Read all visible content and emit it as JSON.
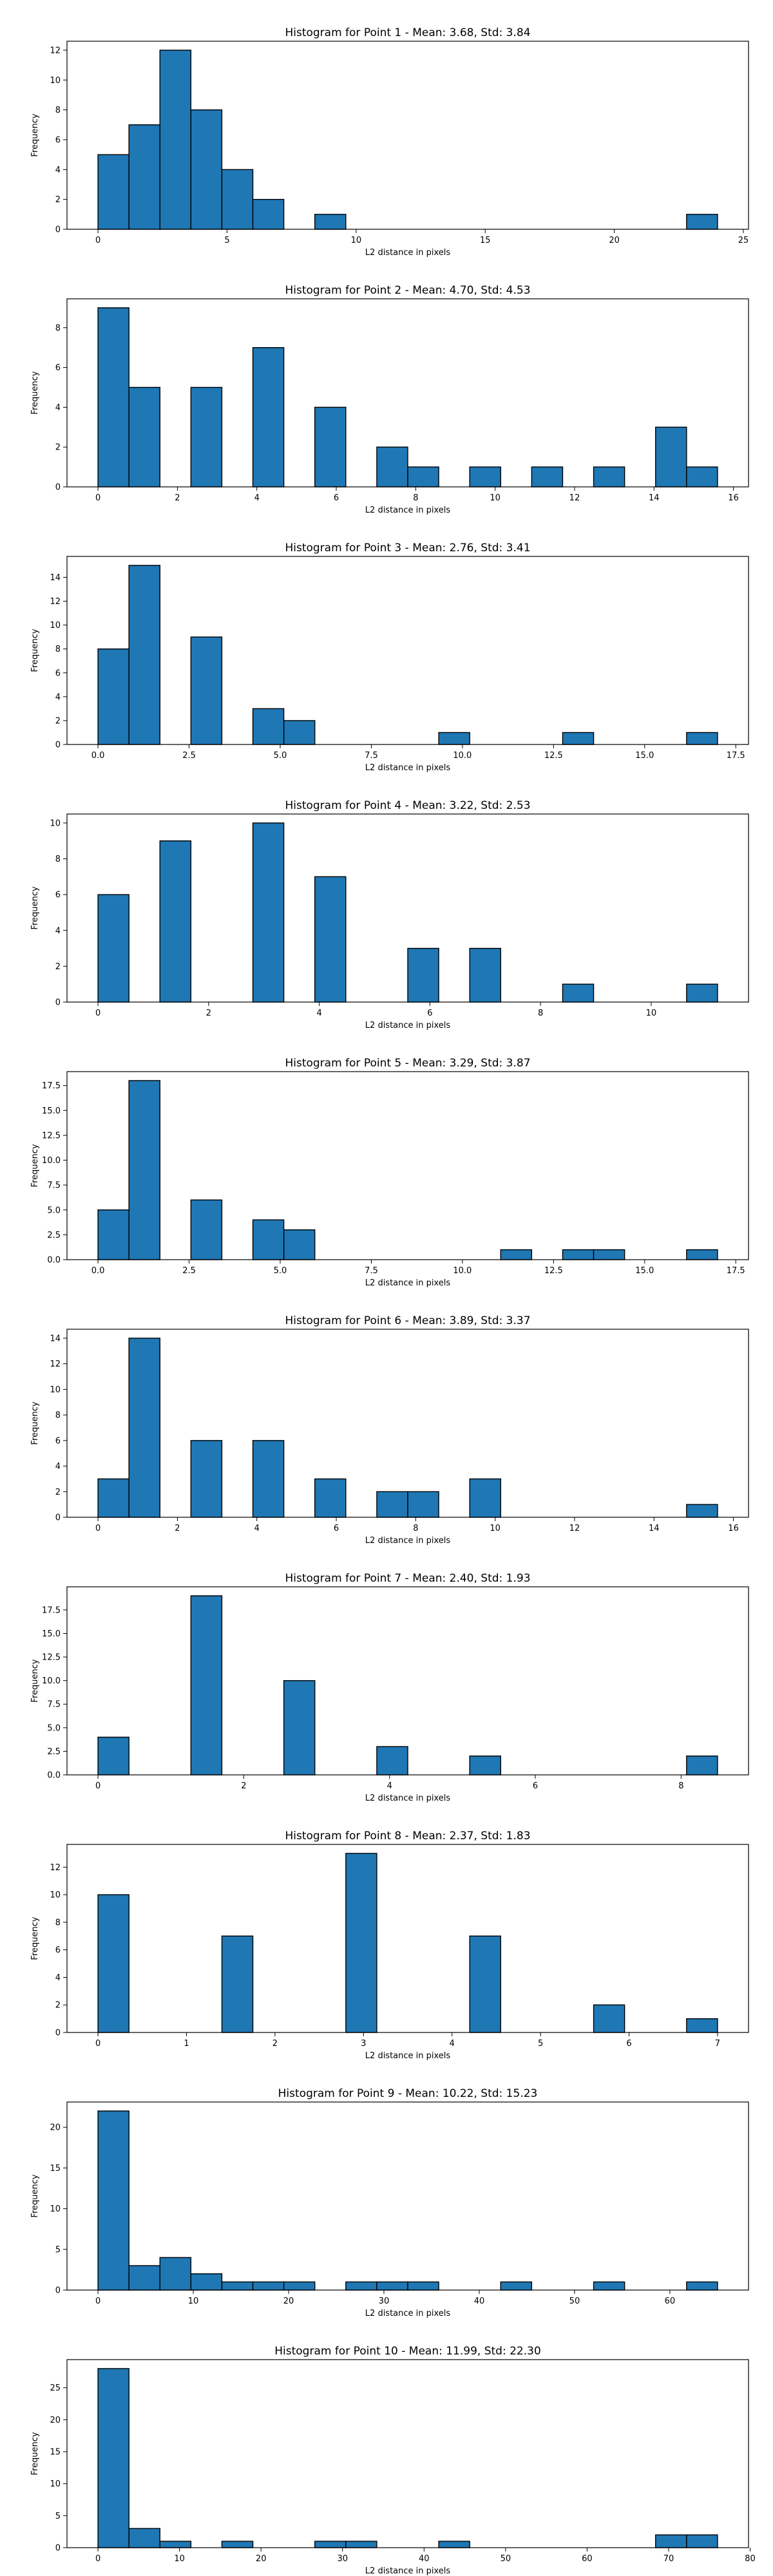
{
  "chart_data": [
    {
      "type": "bar",
      "title": "Histogram for Point 1 - Mean: 3.68, Std: 3.84",
      "xlabel": "L2 distance in pixels",
      "ylabel": "Frequency",
      "xlim": [
        -1.2,
        25.2
      ],
      "ylim": [
        0,
        12.6
      ],
      "xticks": [
        0,
        5,
        10,
        15,
        20,
        25
      ],
      "xtick_labels": [
        "0",
        "5",
        "10",
        "15",
        "20",
        "25"
      ],
      "yticks": [
        0,
        2,
        4,
        6,
        8,
        10,
        12
      ],
      "ytick_labels": [
        "0",
        "2",
        "4",
        "6",
        "8",
        "10",
        "12"
      ],
      "bins": [
        {
          "x0": 0.0,
          "x1": 1.2,
          "count": 5
        },
        {
          "x0": 1.2,
          "x1": 2.4,
          "count": 7
        },
        {
          "x0": 2.4,
          "x1": 3.6,
          "count": 12
        },
        {
          "x0": 3.6,
          "x1": 4.8,
          "count": 8
        },
        {
          "x0": 4.8,
          "x1": 6.0,
          "count": 4
        },
        {
          "x0": 6.0,
          "x1": 7.2,
          "count": 2
        },
        {
          "x0": 8.4,
          "x1": 9.6,
          "count": 1
        },
        {
          "x0": 22.8,
          "x1": 24.0,
          "count": 1
        }
      ]
    },
    {
      "type": "bar",
      "title": "Histogram for Point 2 - Mean: 4.70, Std: 4.53",
      "xlabel": "L2 distance in pixels",
      "ylabel": "Frequency",
      "xlim": [
        -0.78,
        16.38
      ],
      "ylim": [
        0,
        9.45
      ],
      "xticks": [
        0,
        2,
        4,
        6,
        8,
        10,
        12,
        14,
        16
      ],
      "xtick_labels": [
        "0",
        "2",
        "4",
        "6",
        "8",
        "10",
        "12",
        "14",
        "16"
      ],
      "yticks": [
        0,
        2,
        4,
        6,
        8
      ],
      "ytick_labels": [
        "0",
        "2",
        "4",
        "6",
        "8"
      ],
      "bins": [
        {
          "x0": 0.0,
          "x1": 0.78,
          "count": 9
        },
        {
          "x0": 0.78,
          "x1": 1.56,
          "count": 5
        },
        {
          "x0": 2.34,
          "x1": 3.12,
          "count": 5
        },
        {
          "x0": 3.9,
          "x1": 4.68,
          "count": 7
        },
        {
          "x0": 5.46,
          "x1": 6.24,
          "count": 4
        },
        {
          "x0": 7.02,
          "x1": 7.8,
          "count": 2
        },
        {
          "x0": 7.8,
          "x1": 8.58,
          "count": 1
        },
        {
          "x0": 9.36,
          "x1": 10.14,
          "count": 1
        },
        {
          "x0": 10.92,
          "x1": 11.7,
          "count": 1
        },
        {
          "x0": 12.48,
          "x1": 13.26,
          "count": 1
        },
        {
          "x0": 14.04,
          "x1": 14.82,
          "count": 3
        },
        {
          "x0": 14.82,
          "x1": 15.6,
          "count": 1
        }
      ]
    },
    {
      "type": "bar",
      "title": "Histogram for Point 3 - Mean: 2.76, Std: 3.41",
      "xlabel": "L2 distance in pixels",
      "ylabel": "Frequency",
      "xlim": [
        -0.85,
        17.85
      ],
      "ylim": [
        0,
        15.75
      ],
      "xticks": [
        0,
        2.5,
        5,
        7.5,
        10,
        12.5,
        15,
        17.5
      ],
      "xtick_labels": [
        "0.0",
        "2.5",
        "5.0",
        "7.5",
        "10.0",
        "12.5",
        "15.0",
        "17.5"
      ],
      "yticks": [
        0,
        2,
        4,
        6,
        8,
        10,
        12,
        14
      ],
      "ytick_labels": [
        "0",
        "2",
        "4",
        "6",
        "8",
        "10",
        "12",
        "14"
      ],
      "bins": [
        {
          "x0": 0.0,
          "x1": 0.85,
          "count": 8
        },
        {
          "x0": 0.85,
          "x1": 1.7,
          "count": 15
        },
        {
          "x0": 2.55,
          "x1": 3.4,
          "count": 9
        },
        {
          "x0": 4.25,
          "x1": 5.1,
          "count": 3
        },
        {
          "x0": 5.1,
          "x1": 5.95,
          "count": 2
        },
        {
          "x0": 9.35,
          "x1": 10.2,
          "count": 1
        },
        {
          "x0": 12.75,
          "x1": 13.6,
          "count": 1
        },
        {
          "x0": 16.15,
          "x1": 17.0,
          "count": 1
        }
      ]
    },
    {
      "type": "bar",
      "title": "Histogram for Point 4 - Mean: 3.22, Std: 2.53",
      "xlabel": "L2 distance in pixels",
      "ylabel": "Frequency",
      "xlim": [
        -0.56,
        11.76
      ],
      "ylim": [
        0,
        10.5
      ],
      "xticks": [
        0,
        2,
        4,
        6,
        8,
        10
      ],
      "xtick_labels": [
        "0",
        "2",
        "4",
        "6",
        "8",
        "10"
      ],
      "yticks": [
        0,
        2,
        4,
        6,
        8,
        10
      ],
      "ytick_labels": [
        "0",
        "2",
        "4",
        "6",
        "8",
        "10"
      ],
      "bins": [
        {
          "x0": 0.0,
          "x1": 0.56,
          "count": 6
        },
        {
          "x0": 1.12,
          "x1": 1.68,
          "count": 9
        },
        {
          "x0": 2.8,
          "x1": 3.36,
          "count": 10
        },
        {
          "x0": 3.92,
          "x1": 4.48,
          "count": 7
        },
        {
          "x0": 5.6,
          "x1": 6.16,
          "count": 3
        },
        {
          "x0": 6.72,
          "x1": 7.28,
          "count": 3
        },
        {
          "x0": 8.4,
          "x1": 8.96,
          "count": 1
        },
        {
          "x0": 10.64,
          "x1": 11.2,
          "count": 1
        }
      ]
    },
    {
      "type": "bar",
      "title": "Histogram for Point 5 - Mean: 3.29, Std: 3.87",
      "xlabel": "L2 distance in pixels",
      "ylabel": "Frequency",
      "xlim": [
        -0.85,
        17.85
      ],
      "ylim": [
        0,
        18.9
      ],
      "xticks": [
        0,
        2.5,
        5,
        7.5,
        10,
        12.5,
        15,
        17.5
      ],
      "xtick_labels": [
        "0.0",
        "2.5",
        "5.0",
        "7.5",
        "10.0",
        "12.5",
        "15.0",
        "17.5"
      ],
      "yticks": [
        0,
        2.5,
        5,
        7.5,
        10,
        12.5,
        15,
        17.5
      ],
      "ytick_labels": [
        "0.0",
        "2.5",
        "5.0",
        "7.5",
        "10.0",
        "12.5",
        "15.0",
        "17.5"
      ],
      "bins": [
        {
          "x0": 0.0,
          "x1": 0.85,
          "count": 5
        },
        {
          "x0": 0.85,
          "x1": 1.7,
          "count": 18
        },
        {
          "x0": 2.55,
          "x1": 3.4,
          "count": 6
        },
        {
          "x0": 4.25,
          "x1": 5.1,
          "count": 4
        },
        {
          "x0": 5.1,
          "x1": 5.95,
          "count": 3
        },
        {
          "x0": 11.05,
          "x1": 11.9,
          "count": 1
        },
        {
          "x0": 12.75,
          "x1": 13.6,
          "count": 1
        },
        {
          "x0": 13.6,
          "x1": 14.45,
          "count": 1
        },
        {
          "x0": 16.15,
          "x1": 17.0,
          "count": 1
        }
      ]
    },
    {
      "type": "bar",
      "title": "Histogram for Point 6 - Mean: 3.89, Std: 3.37",
      "xlabel": "L2 distance in pixels",
      "ylabel": "Frequency",
      "xlim": [
        -0.78,
        16.38
      ],
      "ylim": [
        0,
        14.7
      ],
      "xticks": [
        0,
        2,
        4,
        6,
        8,
        10,
        12,
        14,
        16
      ],
      "xtick_labels": [
        "0",
        "2",
        "4",
        "6",
        "8",
        "10",
        "12",
        "14",
        "16"
      ],
      "yticks": [
        0,
        2,
        4,
        6,
        8,
        10,
        12,
        14
      ],
      "ytick_labels": [
        "0",
        "2",
        "4",
        "6",
        "8",
        "10",
        "12",
        "14"
      ],
      "bins": [
        {
          "x0": 0.0,
          "x1": 0.78,
          "count": 3
        },
        {
          "x0": 0.78,
          "x1": 1.56,
          "count": 14
        },
        {
          "x0": 2.34,
          "x1": 3.12,
          "count": 6
        },
        {
          "x0": 3.9,
          "x1": 4.68,
          "count": 6
        },
        {
          "x0": 5.46,
          "x1": 6.24,
          "count": 3
        },
        {
          "x0": 7.02,
          "x1": 7.8,
          "count": 2
        },
        {
          "x0": 7.8,
          "x1": 8.58,
          "count": 2
        },
        {
          "x0": 9.36,
          "x1": 10.14,
          "count": 3
        },
        {
          "x0": 14.82,
          "x1": 15.6,
          "count": 1
        }
      ]
    },
    {
      "type": "bar",
      "title": "Histogram for Point 7 - Mean: 2.40, Std: 1.93",
      "xlabel": "L2 distance in pixels",
      "ylabel": "Frequency",
      "xlim": [
        -0.425,
        8.925
      ],
      "ylim": [
        0,
        19.95
      ],
      "xticks": [
        0,
        2,
        4,
        6,
        8
      ],
      "xtick_labels": [
        "0",
        "2",
        "4",
        "6",
        "8"
      ],
      "yticks": [
        0,
        2.5,
        5,
        7.5,
        10,
        12.5,
        15,
        17.5
      ],
      "ytick_labels": [
        "0.0",
        "2.5",
        "5.0",
        "7.5",
        "10.0",
        "12.5",
        "15.0",
        "17.5"
      ],
      "bins": [
        {
          "x0": 0.0,
          "x1": 0.425,
          "count": 4
        },
        {
          "x0": 1.275,
          "x1": 1.7,
          "count": 19
        },
        {
          "x0": 2.55,
          "x1": 2.975,
          "count": 10
        },
        {
          "x0": 3.825,
          "x1": 4.25,
          "count": 3
        },
        {
          "x0": 5.1,
          "x1": 5.525,
          "count": 2
        },
        {
          "x0": 8.075,
          "x1": 8.5,
          "count": 2
        }
      ]
    },
    {
      "type": "bar",
      "title": "Histogram for Point 8 - Mean: 2.37, Std: 1.83",
      "xlabel": "L2 distance in pixels",
      "ylabel": "Frequency",
      "xlim": [
        -0.35,
        7.35
      ],
      "ylim": [
        0,
        13.65
      ],
      "xticks": [
        0,
        1,
        2,
        3,
        4,
        5,
        6,
        7
      ],
      "xtick_labels": [
        "0",
        "1",
        "2",
        "3",
        "4",
        "5",
        "6",
        "7"
      ],
      "yticks": [
        0,
        2,
        4,
        6,
        8,
        10,
        12
      ],
      "ytick_labels": [
        "0",
        "2",
        "4",
        "6",
        "8",
        "10",
        "12"
      ],
      "bins": [
        {
          "x0": 0.0,
          "x1": 0.35,
          "count": 10
        },
        {
          "x0": 1.4,
          "x1": 1.75,
          "count": 7
        },
        {
          "x0": 2.8,
          "x1": 3.15,
          "count": 13
        },
        {
          "x0": 4.2,
          "x1": 4.55,
          "count": 7
        },
        {
          "x0": 5.6,
          "x1": 5.95,
          "count": 2
        },
        {
          "x0": 6.65,
          "x1": 7.0,
          "count": 1
        }
      ]
    },
    {
      "type": "bar",
      "title": "Histogram for Point 9 - Mean: 10.22, Std: 15.23",
      "xlabel": "L2 distance in pixels",
      "ylabel": "Frequency",
      "xlim": [
        -3.25,
        68.25
      ],
      "ylim": [
        0,
        23.1
      ],
      "xticks": [
        0,
        10,
        20,
        30,
        40,
        50,
        60
      ],
      "xtick_labels": [
        "0",
        "10",
        "20",
        "30",
        "40",
        "50",
        "60"
      ],
      "yticks": [
        0,
        5,
        10,
        15,
        20
      ],
      "ytick_labels": [
        "0",
        "5",
        "10",
        "15",
        "20"
      ],
      "bins": [
        {
          "x0": 0.0,
          "x1": 3.25,
          "count": 22
        },
        {
          "x0": 3.25,
          "x1": 6.5,
          "count": 3
        },
        {
          "x0": 6.5,
          "x1": 9.75,
          "count": 4
        },
        {
          "x0": 9.75,
          "x1": 13.0,
          "count": 2
        },
        {
          "x0": 13.0,
          "x1": 16.25,
          "count": 1
        },
        {
          "x0": 16.25,
          "x1": 19.5,
          "count": 1
        },
        {
          "x0": 19.5,
          "x1": 22.75,
          "count": 1
        },
        {
          "x0": 26.0,
          "x1": 29.25,
          "count": 1
        },
        {
          "x0": 29.25,
          "x1": 32.5,
          "count": 1
        },
        {
          "x0": 32.5,
          "x1": 35.75,
          "count": 1
        },
        {
          "x0": 42.25,
          "x1": 45.5,
          "count": 1
        },
        {
          "x0": 52.0,
          "x1": 55.25,
          "count": 1
        },
        {
          "x0": 61.75,
          "x1": 65.0,
          "count": 1
        }
      ]
    },
    {
      "type": "bar",
      "title": "Histogram for Point 10 - Mean: 11.99, Std: 22.30",
      "xlabel": "L2 distance in pixels",
      "ylabel": "Frequency",
      "xlim": [
        -3.8,
        79.8
      ],
      "ylim": [
        0,
        29.4
      ],
      "xticks": [
        0,
        10,
        20,
        30,
        40,
        50,
        60,
        70,
        80
      ],
      "xtick_labels": [
        "0",
        "10",
        "20",
        "30",
        "40",
        "50",
        "60",
        "70",
        "80"
      ],
      "yticks": [
        0,
        5,
        10,
        15,
        20,
        25
      ],
      "ytick_labels": [
        "0",
        "5",
        "10",
        "15",
        "20",
        "25"
      ],
      "bins": [
        {
          "x0": 0.0,
          "x1": 3.8,
          "count": 28
        },
        {
          "x0": 3.8,
          "x1": 7.6,
          "count": 3
        },
        {
          "x0": 7.6,
          "x1": 11.4,
          "count": 1
        },
        {
          "x0": 15.2,
          "x1": 19.0,
          "count": 1
        },
        {
          "x0": 26.6,
          "x1": 30.4,
          "count": 1
        },
        {
          "x0": 30.4,
          "x1": 34.2,
          "count": 1
        },
        {
          "x0": 41.8,
          "x1": 45.6,
          "count": 1
        },
        {
          "x0": 68.4,
          "x1": 72.2,
          "count": 2
        },
        {
          "x0": 72.2,
          "x1": 76.0,
          "count": 2
        }
      ]
    }
  ]
}
